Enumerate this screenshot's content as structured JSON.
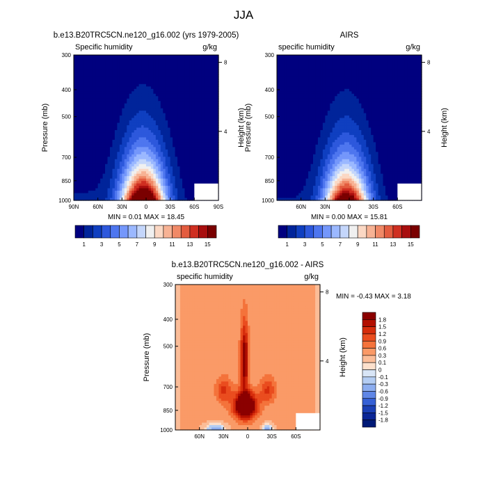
{
  "page_title": "JJA",
  "chart_data": [
    {
      "type": "heatmap",
      "title": "b.e13.B20TRC5CN.ne120_g16.002 (yrs 1979-2005)",
      "left_subtitle": "Specific humidity",
      "right_subtitle": "g/kg",
      "ylabel": "Pressure (mb)",
      "ylabel_right": "Height (km)",
      "x_ticks": [
        "90N",
        "60N",
        "30N",
        "0",
        "30S",
        "60S",
        "90S"
      ],
      "x_tick_values": [
        90,
        60,
        30,
        0,
        -30,
        -60,
        -90
      ],
      "xlim": [
        90,
        -90
      ],
      "y_ticks": [
        "300",
        "400",
        "500",
        "700",
        "850",
        "1000"
      ],
      "y_tick_values": [
        300,
        400,
        500,
        700,
        850,
        1000
      ],
      "ylim": [
        300,
        1000
      ],
      "y_scale": "log",
      "right_ticks": [
        "8",
        "4"
      ],
      "right_tick_values": [
        8,
        4
      ],
      "stats_text": "MIN =  0.01  MAX =  18.45",
      "min": 0.01,
      "max": 18.45,
      "field": "model",
      "colorbar_labels": [
        "1",
        "3",
        "5",
        "7",
        "9",
        "11",
        "13",
        "15"
      ],
      "colorbar_orientation": "horizontal"
    },
    {
      "type": "heatmap",
      "title": "AIRS",
      "left_subtitle": "specific humidity",
      "right_subtitle": "g/kg",
      "ylabel": "Pressure (mb)",
      "ylabel_right": "Height (km)",
      "x_ticks": [
        "60N",
        "30N",
        "0",
        "30S",
        "60S"
      ],
      "x_tick_values": [
        60,
        30,
        0,
        -30,
        -60
      ],
      "xlim": [
        90,
        -90
      ],
      "y_ticks": [
        "300",
        "400",
        "500",
        "700",
        "850",
        "1000"
      ],
      "y_tick_values": [
        300,
        400,
        500,
        700,
        850,
        1000
      ],
      "ylim": [
        300,
        1000
      ],
      "y_scale": "log",
      "right_ticks": [
        "8",
        "4"
      ],
      "right_tick_values": [
        8,
        4
      ],
      "stats_text": "MIN =  0.00  MAX =  15.81",
      "min": 0.0,
      "max": 15.81,
      "field": "obs",
      "colorbar_labels": [
        "1",
        "3",
        "5",
        "7",
        "9",
        "11",
        "13",
        "15"
      ],
      "colorbar_orientation": "horizontal"
    },
    {
      "type": "heatmap",
      "title": "b.e13.B20TRC5CN.ne120_g16.002 - AIRS",
      "left_subtitle": "specific humidity",
      "right_subtitle": "g/kg",
      "ylabel": "Pressure (mb)",
      "ylabel_right": "Height (km)",
      "x_ticks": [
        "60N",
        "30N",
        "0",
        "30S",
        "60S"
      ],
      "x_tick_values": [
        60,
        30,
        0,
        -30,
        -60
      ],
      "xlim": [
        90,
        -90
      ],
      "y_ticks": [
        "300",
        "400",
        "500",
        "700",
        "850",
        "1000"
      ],
      "y_tick_values": [
        300,
        400,
        500,
        700,
        850,
        1000
      ],
      "ylim": [
        300,
        1000
      ],
      "y_scale": "log",
      "right_ticks": [
        "8",
        "4"
      ],
      "right_tick_values": [
        8,
        4
      ],
      "stats_text": "MIN = -0.43  MAX =   3.18",
      "min": -0.43,
      "max": 3.18,
      "field": "diff",
      "colorbar_labels": [
        "1.8",
        "1.5",
        "1.2",
        "0.9",
        "0.6",
        "0.3",
        "0.1",
        "0",
        "-0.1",
        "-0.3",
        "-0.6",
        "-0.9",
        "-1.2",
        "-1.5",
        "-1.8"
      ],
      "colorbar_orientation": "vertical"
    }
  ],
  "colors": {
    "abs_scale": [
      "#00007f",
      "#00249a",
      "#0f3fc0",
      "#2d58dc",
      "#4e76ef",
      "#7497fb",
      "#9bb8ff",
      "#c4d6fb",
      "#f0f0f0",
      "#fbd8c4",
      "#f7b294",
      "#f08967",
      "#e35c3f",
      "#cf2f21",
      "#a80e0e",
      "#7a0000"
    ],
    "diff_scale": [
      "#8b0000",
      "#b30f00",
      "#d62d0c",
      "#ea4d1f",
      "#f4733b",
      "#fa9a67",
      "#fbbd98",
      "#fde0cc",
      "#d8e5f6",
      "#b4cdf3",
      "#8cadef",
      "#5f86e6",
      "#3560d6",
      "#1a3fb5",
      "#0b2696",
      "#001a77"
    ]
  }
}
